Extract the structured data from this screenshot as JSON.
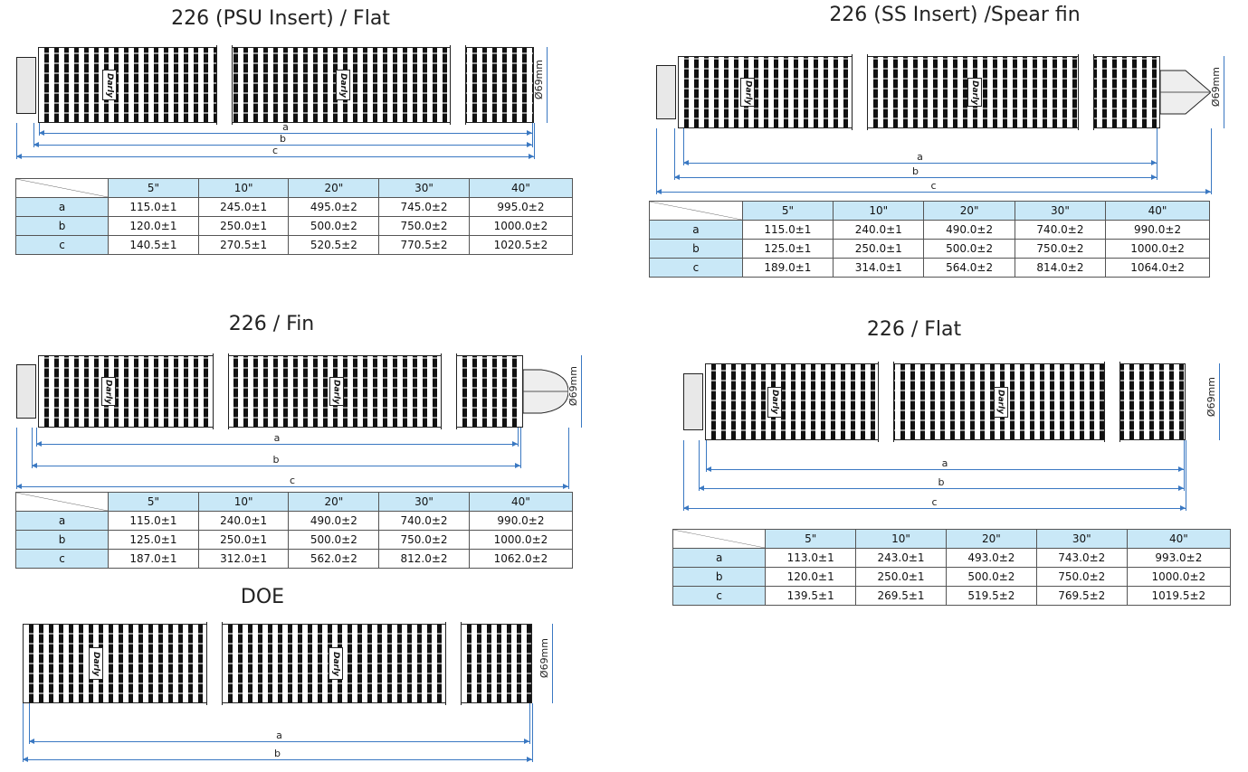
{
  "sections": [
    {
      "id": "psu-flat",
      "title": "226 (PSU Insert) / Flat",
      "end": "flat",
      "diameter": "Ø69mm",
      "dims": [
        "a",
        "b",
        "c"
      ],
      "table": {
        "headers": [
          "5\"",
          "10\"",
          "20\"",
          "30\"",
          "40\""
        ],
        "rows": [
          {
            "label": "a",
            "values": [
              "115.0±1",
              "245.0±1",
              "495.0±2",
              "745.0±2",
              "995.0±2"
            ]
          },
          {
            "label": "b",
            "values": [
              "120.0±1",
              "250.0±1",
              "500.0±2",
              "750.0±2",
              "1000.0±2"
            ]
          },
          {
            "label": "c",
            "values": [
              "140.5±1",
              "270.5±1",
              "520.5±2",
              "770.5±2",
              "1020.5±2"
            ]
          }
        ]
      }
    },
    {
      "id": "ss-spear-fin",
      "title": "226 (SS Insert) /Spear fin",
      "end": "spear",
      "diameter": "Ø69mm",
      "dims": [
        "a",
        "b",
        "c"
      ],
      "table": {
        "headers": [
          "5\"",
          "10\"",
          "20\"",
          "30\"",
          "40\""
        ],
        "rows": [
          {
            "label": "a",
            "values": [
              "115.0±1",
              "240.0±1",
              "490.0±2",
              "740.0±2",
              "990.0±2"
            ]
          },
          {
            "label": "b",
            "values": [
              "125.0±1",
              "250.0±1",
              "500.0±2",
              "750.0±2",
              "1000.0±2"
            ]
          },
          {
            "label": "c",
            "values": [
              "189.0±1",
              "314.0±1",
              "564.0±2",
              "814.0±2",
              "1064.0±2"
            ]
          }
        ]
      }
    },
    {
      "id": "fin",
      "title": "226 / Fin",
      "end": "fin",
      "diameter": "Ø69mm",
      "dims": [
        "a",
        "b",
        "c"
      ],
      "table": {
        "headers": [
          "5\"",
          "10\"",
          "20\"",
          "30\"",
          "40\""
        ],
        "rows": [
          {
            "label": "a",
            "values": [
              "115.0±1",
              "240.0±1",
              "490.0±2",
              "740.0±2",
              "990.0±2"
            ]
          },
          {
            "label": "b",
            "values": [
              "125.0±1",
              "250.0±1",
              "500.0±2",
              "750.0±2",
              "1000.0±2"
            ]
          },
          {
            "label": "c",
            "values": [
              "187.0±1",
              "312.0±1",
              "562.0±2",
              "812.0±2",
              "1062.0±2"
            ]
          }
        ]
      }
    },
    {
      "id": "flat",
      "title": "226 / Flat",
      "end": "flat",
      "diameter": "Ø69mm",
      "dims": [
        "a",
        "b",
        "c"
      ],
      "table": {
        "headers": [
          "5\"",
          "10\"",
          "20\"",
          "30\"",
          "40\""
        ],
        "rows": [
          {
            "label": "a",
            "values": [
              "113.0±1",
              "243.0±1",
              "493.0±2",
              "743.0±2",
              "993.0±2"
            ]
          },
          {
            "label": "b",
            "values": [
              "120.0±1",
              "250.0±1",
              "500.0±2",
              "750.0±2",
              "1000.0±2"
            ]
          },
          {
            "label": "c",
            "values": [
              "139.5±1",
              "269.5±1",
              "519.5±2",
              "769.5±2",
              "1019.5±2"
            ]
          }
        ]
      }
    },
    {
      "id": "doe",
      "title": "DOE",
      "end": "doe",
      "diameter": "Ø69mm",
      "dims": [
        "a",
        "b"
      ]
    }
  ],
  "logo_text": "Darly"
}
